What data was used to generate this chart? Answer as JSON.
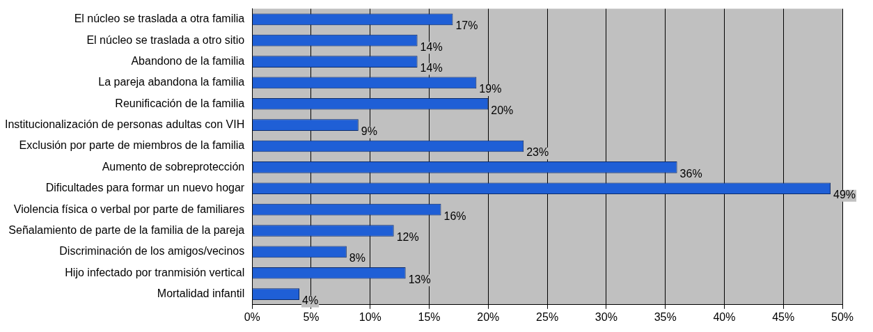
{
  "chart_data": {
    "type": "bar",
    "orientation": "horizontal",
    "categories": [
      "El núcleo se traslada a otra familia",
      "El núcleo se traslada a otro sitio",
      "Abandono de la familia",
      "La pareja abandona la familia",
      "Reunificación de la familia",
      "Institucionalización de personas adultas con VIH",
      "Exclusión por parte de miembros de la familia",
      "Aumento de sobreprotección",
      "Dificultades para formar un nuevo hogar",
      "Violencia física o verbal por parte de familiares",
      "Señalamiento de parte de la familia de la pareja",
      "Discriminación de los amigos/vecinos",
      "Hijo infectado por tranmisión vertical",
      "Mortalidad infantil"
    ],
    "values": [
      17,
      14,
      14,
      19,
      20,
      9,
      23,
      36,
      49,
      16,
      12,
      8,
      13,
      4
    ],
    "value_labels": [
      "17%",
      "14%",
      "14%",
      "19%",
      "20%",
      "9%",
      "23%",
      "36%",
      "49%",
      "16%",
      "12%",
      "8%",
      "13%",
      "4%"
    ],
    "color": "#1f5fd6",
    "xlim": [
      0,
      50
    ],
    "xticks": [
      {
        "value": 0,
        "label": "0%"
      },
      {
        "value": 5,
        "label": "5%"
      },
      {
        "value": 10,
        "label": "10%"
      },
      {
        "value": 15,
        "label": "15%"
      },
      {
        "value": 20,
        "label": "20%"
      },
      {
        "value": 25,
        "label": "25%"
      },
      {
        "value": 30,
        "label": "30%"
      },
      {
        "value": 35,
        "label": "35%"
      },
      {
        "value": 40,
        "label": "40%"
      },
      {
        "value": 45,
        "label": "45%"
      },
      {
        "value": 50,
        "label": "50%"
      }
    ],
    "grid": "x",
    "legend": false
  }
}
